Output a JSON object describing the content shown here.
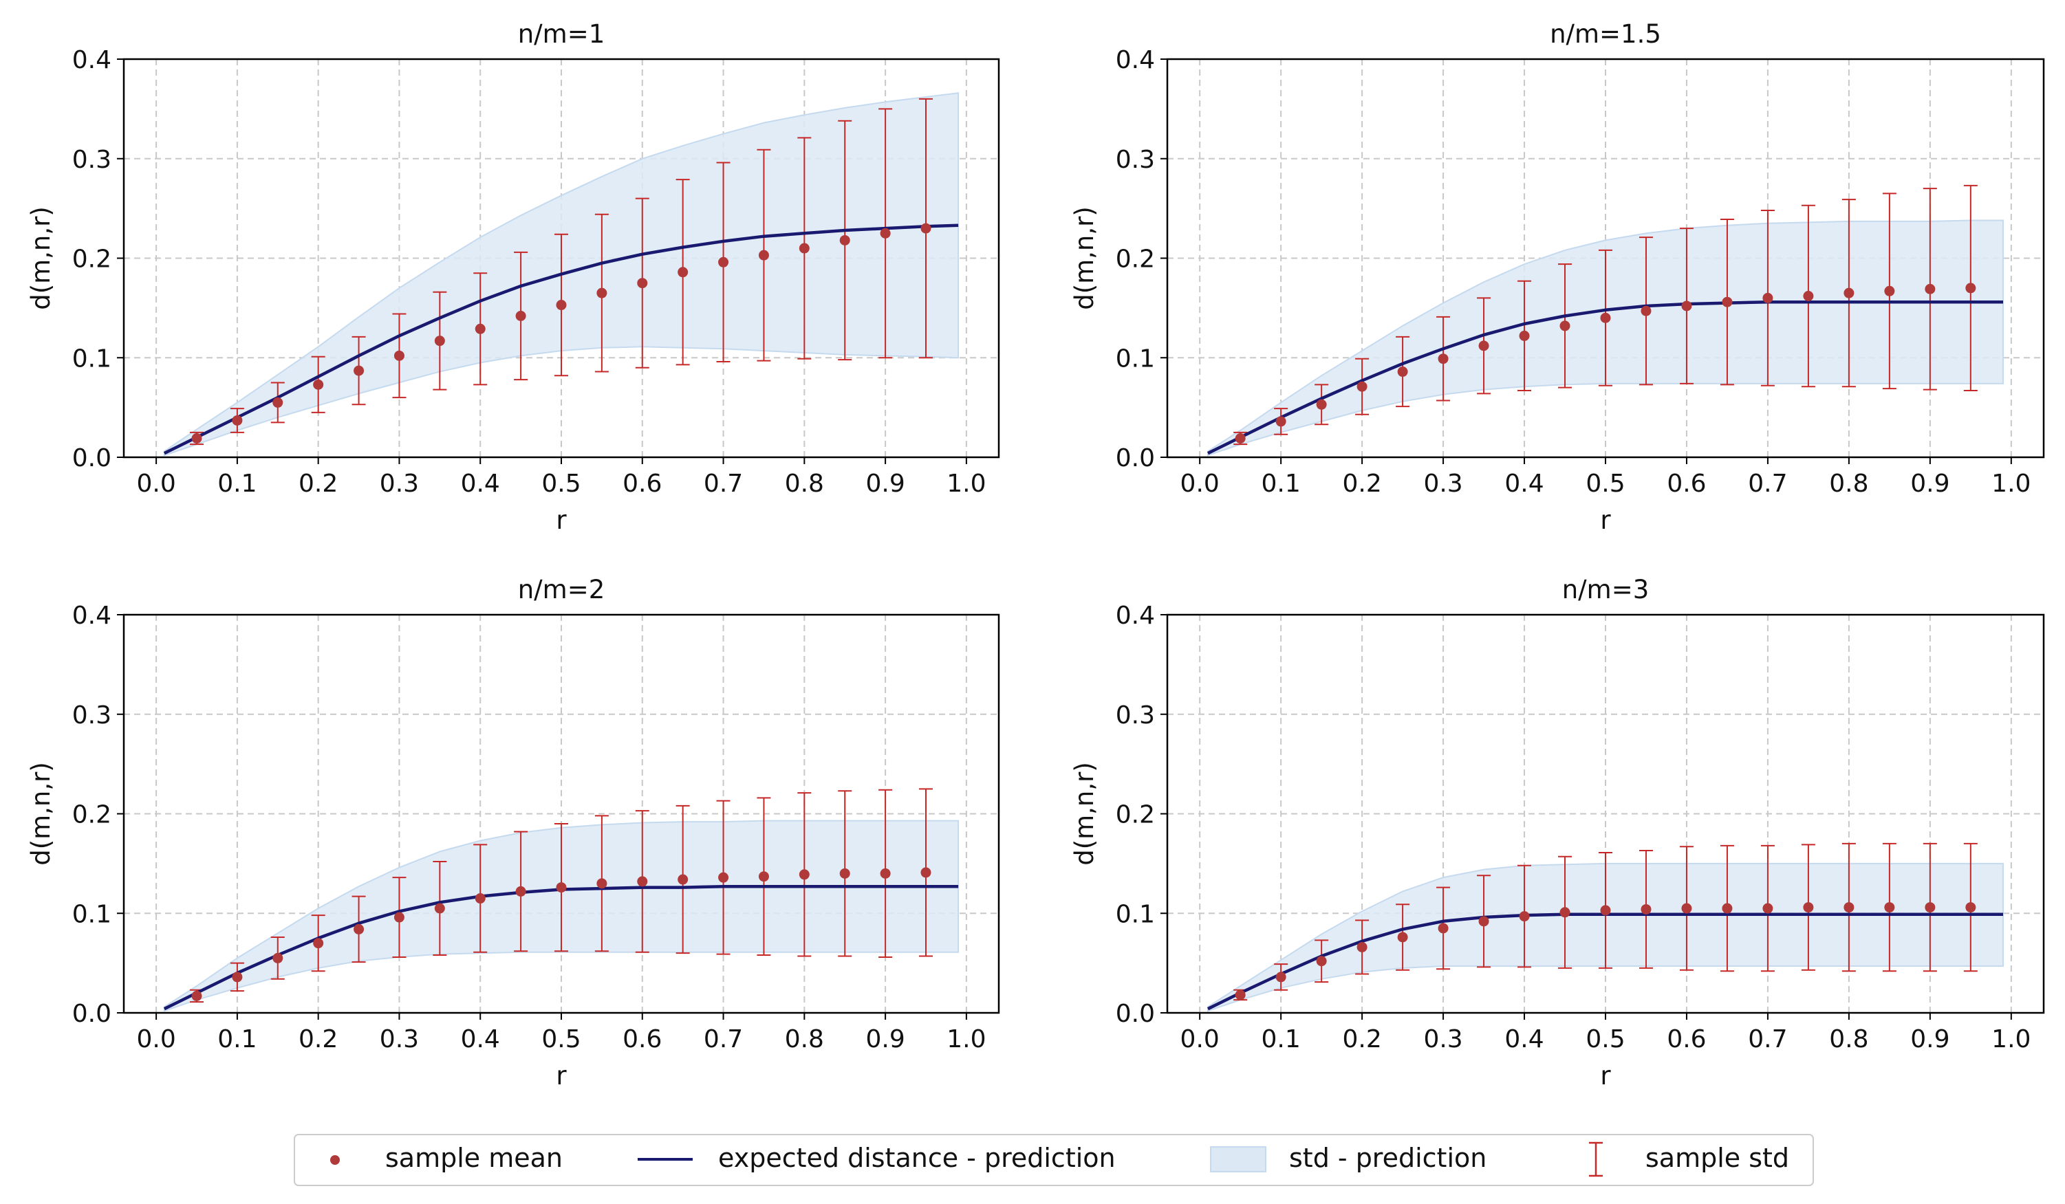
{
  "chart_data": [
    {
      "type": "line",
      "title": "n/m=1",
      "xlabel": "r",
      "ylabel": "d(m,n,r)",
      "xlim": [
        -0.04,
        1.04
      ],
      "ylim": [
        0.0,
        0.4
      ],
      "xticks": [
        "0.0",
        "0.1",
        "0.2",
        "0.3",
        "0.4",
        "0.5",
        "0.6",
        "0.7",
        "0.8",
        "0.9",
        "1.0"
      ],
      "yticks": [
        "0.0",
        "0.1",
        "0.2",
        "0.3",
        "0.4"
      ],
      "grid": true,
      "prediction": {
        "x": [
          0.01,
          0.05,
          0.1,
          0.15,
          0.2,
          0.25,
          0.3,
          0.35,
          0.4,
          0.45,
          0.5,
          0.55,
          0.6,
          0.65,
          0.7,
          0.75,
          0.8,
          0.85,
          0.9,
          0.95,
          0.99
        ],
        "mean": [
          0.004,
          0.02,
          0.04,
          0.06,
          0.081,
          0.102,
          0.122,
          0.14,
          0.157,
          0.172,
          0.184,
          0.195,
          0.204,
          0.211,
          0.217,
          0.222,
          0.225,
          0.228,
          0.23,
          0.232,
          0.233
        ],
        "lower": [
          0.002,
          0.013,
          0.027,
          0.04,
          0.052,
          0.064,
          0.075,
          0.086,
          0.095,
          0.102,
          0.107,
          0.11,
          0.111,
          0.11,
          0.109,
          0.107,
          0.105,
          0.103,
          0.102,
          0.101,
          0.1
        ],
        "upper": [
          0.006,
          0.028,
          0.055,
          0.083,
          0.111,
          0.141,
          0.17,
          0.196,
          0.221,
          0.243,
          0.263,
          0.282,
          0.3,
          0.313,
          0.325,
          0.336,
          0.344,
          0.351,
          0.357,
          0.362,
          0.366
        ]
      },
      "samples": {
        "x": [
          0.05,
          0.1,
          0.15,
          0.2,
          0.25,
          0.3,
          0.35,
          0.4,
          0.45,
          0.5,
          0.55,
          0.6,
          0.65,
          0.7,
          0.75,
          0.8,
          0.85,
          0.9,
          0.95
        ],
        "mean": [
          0.019,
          0.037,
          0.055,
          0.073,
          0.087,
          0.102,
          0.117,
          0.129,
          0.142,
          0.153,
          0.165,
          0.175,
          0.186,
          0.196,
          0.203,
          0.21,
          0.218,
          0.225,
          0.23
        ],
        "std": [
          0.006,
          0.012,
          0.02,
          0.028,
          0.034,
          0.042,
          0.049,
          0.056,
          0.064,
          0.071,
          0.079,
          0.085,
          0.093,
          0.1,
          0.106,
          0.111,
          0.12,
          0.125,
          0.13
        ]
      }
    },
    {
      "type": "line",
      "title": "n/m=1.5",
      "xlabel": "r",
      "ylabel": "d(m,n,r)",
      "xlim": [
        -0.04,
        1.04
      ],
      "ylim": [
        0.0,
        0.4
      ],
      "xticks": [
        "0.0",
        "0.1",
        "0.2",
        "0.3",
        "0.4",
        "0.5",
        "0.6",
        "0.7",
        "0.8",
        "0.9",
        "1.0"
      ],
      "yticks": [
        "0.0",
        "0.1",
        "0.2",
        "0.3",
        "0.4"
      ],
      "grid": true,
      "prediction": {
        "x": [
          0.01,
          0.05,
          0.1,
          0.15,
          0.2,
          0.25,
          0.3,
          0.35,
          0.4,
          0.45,
          0.5,
          0.55,
          0.6,
          0.65,
          0.7,
          0.75,
          0.8,
          0.85,
          0.9,
          0.95,
          0.99
        ],
        "mean": [
          0.004,
          0.02,
          0.04,
          0.059,
          0.077,
          0.094,
          0.109,
          0.123,
          0.134,
          0.142,
          0.148,
          0.152,
          0.154,
          0.155,
          0.156,
          0.156,
          0.156,
          0.156,
          0.156,
          0.156,
          0.156
        ],
        "lower": [
          0.002,
          0.013,
          0.025,
          0.036,
          0.047,
          0.056,
          0.063,
          0.068,
          0.071,
          0.073,
          0.074,
          0.074,
          0.074,
          0.074,
          0.074,
          0.074,
          0.074,
          0.074,
          0.074,
          0.074,
          0.074
        ],
        "upper": [
          0.006,
          0.027,
          0.055,
          0.082,
          0.107,
          0.132,
          0.155,
          0.176,
          0.194,
          0.208,
          0.218,
          0.225,
          0.23,
          0.233,
          0.235,
          0.236,
          0.237,
          0.237,
          0.237,
          0.238,
          0.238
        ]
      },
      "samples": {
        "x": [
          0.05,
          0.1,
          0.15,
          0.2,
          0.25,
          0.3,
          0.35,
          0.4,
          0.45,
          0.5,
          0.55,
          0.6,
          0.65,
          0.7,
          0.75,
          0.8,
          0.85,
          0.9,
          0.95
        ],
        "mean": [
          0.019,
          0.036,
          0.053,
          0.071,
          0.086,
          0.099,
          0.112,
          0.122,
          0.132,
          0.14,
          0.147,
          0.152,
          0.156,
          0.16,
          0.162,
          0.165,
          0.167,
          0.169,
          0.17
        ],
        "std": [
          0.006,
          0.013,
          0.02,
          0.028,
          0.035,
          0.042,
          0.048,
          0.055,
          0.062,
          0.068,
          0.074,
          0.078,
          0.083,
          0.088,
          0.091,
          0.094,
          0.098,
          0.101,
          0.103
        ]
      }
    },
    {
      "type": "line",
      "title": "n/m=2",
      "xlabel": "r",
      "ylabel": "d(m,n,r)",
      "xlim": [
        -0.04,
        1.04
      ],
      "ylim": [
        0.0,
        0.4
      ],
      "xticks": [
        "0.0",
        "0.1",
        "0.2",
        "0.3",
        "0.4",
        "0.5",
        "0.6",
        "0.7",
        "0.8",
        "0.9",
        "1.0"
      ],
      "yticks": [
        "0.0",
        "0.1",
        "0.2",
        "0.3",
        "0.4"
      ],
      "grid": true,
      "prediction": {
        "x": [
          0.01,
          0.05,
          0.1,
          0.15,
          0.2,
          0.25,
          0.3,
          0.35,
          0.4,
          0.45,
          0.5,
          0.55,
          0.6,
          0.65,
          0.7,
          0.75,
          0.8,
          0.85,
          0.9,
          0.95,
          0.99
        ],
        "mean": [
          0.004,
          0.02,
          0.04,
          0.058,
          0.075,
          0.09,
          0.102,
          0.111,
          0.117,
          0.121,
          0.124,
          0.125,
          0.126,
          0.126,
          0.127,
          0.127,
          0.127,
          0.127,
          0.127,
          0.127,
          0.127
        ],
        "lower": [
          0.002,
          0.013,
          0.025,
          0.036,
          0.045,
          0.052,
          0.056,
          0.059,
          0.06,
          0.061,
          0.061,
          0.061,
          0.061,
          0.061,
          0.061,
          0.061,
          0.061,
          0.061,
          0.061,
          0.061,
          0.061
        ],
        "upper": [
          0.006,
          0.027,
          0.055,
          0.08,
          0.105,
          0.127,
          0.146,
          0.162,
          0.173,
          0.181,
          0.186,
          0.189,
          0.191,
          0.192,
          0.192,
          0.193,
          0.193,
          0.193,
          0.193,
          0.193,
          0.193
        ]
      },
      "samples": {
        "x": [
          0.05,
          0.1,
          0.15,
          0.2,
          0.25,
          0.3,
          0.35,
          0.4,
          0.45,
          0.5,
          0.55,
          0.6,
          0.65,
          0.7,
          0.75,
          0.8,
          0.85,
          0.9,
          0.95
        ],
        "mean": [
          0.017,
          0.036,
          0.055,
          0.07,
          0.084,
          0.096,
          0.105,
          0.115,
          0.122,
          0.126,
          0.13,
          0.132,
          0.134,
          0.136,
          0.137,
          0.139,
          0.14,
          0.14,
          0.141
        ],
        "std": [
          0.006,
          0.014,
          0.021,
          0.028,
          0.033,
          0.04,
          0.047,
          0.054,
          0.06,
          0.064,
          0.068,
          0.071,
          0.074,
          0.077,
          0.079,
          0.082,
          0.083,
          0.084,
          0.084
        ]
      }
    },
    {
      "type": "line",
      "title": "n/m=3",
      "xlabel": "r",
      "ylabel": "d(m,n,r)",
      "xlim": [
        -0.04,
        1.04
      ],
      "ylim": [
        0.0,
        0.4
      ],
      "xticks": [
        "0.0",
        "0.1",
        "0.2",
        "0.3",
        "0.4",
        "0.5",
        "0.6",
        "0.7",
        "0.8",
        "0.9",
        "1.0"
      ],
      "yticks": [
        "0.0",
        "0.1",
        "0.2",
        "0.3",
        "0.4"
      ],
      "grid": true,
      "prediction": {
        "x": [
          0.01,
          0.05,
          0.1,
          0.15,
          0.2,
          0.25,
          0.3,
          0.35,
          0.4,
          0.45,
          0.5,
          0.55,
          0.6,
          0.65,
          0.7,
          0.75,
          0.8,
          0.85,
          0.9,
          0.95,
          0.99
        ],
        "mean": [
          0.004,
          0.02,
          0.039,
          0.057,
          0.072,
          0.084,
          0.092,
          0.096,
          0.098,
          0.099,
          0.099,
          0.099,
          0.099,
          0.099,
          0.099,
          0.099,
          0.099,
          0.099,
          0.099,
          0.099,
          0.099
        ],
        "lower": [
          0.002,
          0.013,
          0.025,
          0.034,
          0.041,
          0.045,
          0.047,
          0.047,
          0.047,
          0.047,
          0.047,
          0.047,
          0.047,
          0.047,
          0.047,
          0.047,
          0.047,
          0.047,
          0.047,
          0.047,
          0.047
        ],
        "upper": [
          0.006,
          0.027,
          0.053,
          0.079,
          0.102,
          0.122,
          0.136,
          0.144,
          0.148,
          0.149,
          0.15,
          0.15,
          0.15,
          0.15,
          0.15,
          0.15,
          0.15,
          0.15,
          0.15,
          0.15,
          0.15
        ]
      },
      "samples": {
        "x": [
          0.05,
          0.1,
          0.15,
          0.2,
          0.25,
          0.3,
          0.35,
          0.4,
          0.45,
          0.5,
          0.55,
          0.6,
          0.65,
          0.7,
          0.75,
          0.8,
          0.85,
          0.9,
          0.95
        ],
        "mean": [
          0.018,
          0.036,
          0.052,
          0.066,
          0.076,
          0.085,
          0.092,
          0.097,
          0.101,
          0.103,
          0.104,
          0.105,
          0.105,
          0.105,
          0.106,
          0.106,
          0.106,
          0.106,
          0.106
        ],
        "std": [
          0.005,
          0.013,
          0.021,
          0.027,
          0.033,
          0.041,
          0.046,
          0.051,
          0.056,
          0.058,
          0.059,
          0.062,
          0.063,
          0.063,
          0.063,
          0.064,
          0.064,
          0.064,
          0.064
        ]
      }
    }
  ],
  "legend": {
    "items": [
      {
        "label": "sample mean",
        "kind": "marker"
      },
      {
        "label": "expected distance - prediction",
        "kind": "line"
      },
      {
        "label": "std - prediction",
        "kind": "patch"
      },
      {
        "label": "sample std",
        "kind": "errorbar"
      }
    ],
    "location": "bottom-center"
  },
  "colors": {
    "prediction_line": "#191970",
    "sample_marker": "#b03a3a",
    "errorbar": "#c62828",
    "band_fill": "#dce9f5",
    "band_edge": "#c5daee",
    "grid": "#c8c8c8",
    "axis": "#000000"
  }
}
